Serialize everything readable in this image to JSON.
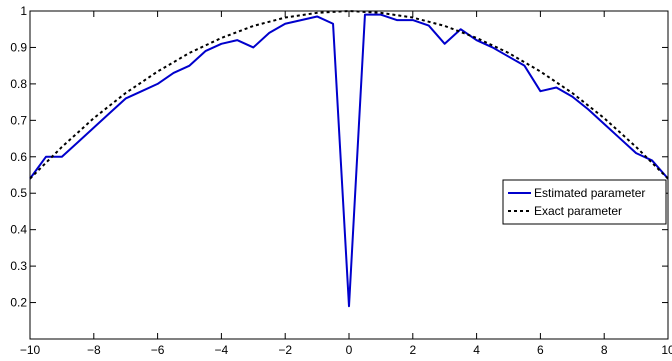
{
  "chart_data": {
    "type": "line",
    "title": "",
    "xlabel": "",
    "ylabel": "",
    "xlim": [
      -10,
      10
    ],
    "ylim": [
      0.1,
      1.0
    ],
    "x_ticks": [
      -10,
      -8,
      -6,
      -4,
      -2,
      0,
      2,
      4,
      6,
      8,
      10
    ],
    "y_ticks": [
      0.2,
      0.3,
      0.4,
      0.5,
      0.6,
      0.7,
      0.8,
      0.9,
      1
    ],
    "grid": false,
    "legend_position": "center-right",
    "series": [
      {
        "name": "Estimated parameter",
        "color": "#0000cc",
        "style": "solid",
        "points": [
          [
            -10,
            0.54
          ],
          [
            -9.5,
            0.6
          ],
          [
            -9,
            0.6
          ],
          [
            -8.5,
            0.64
          ],
          [
            -8,
            0.68
          ],
          [
            -7.5,
            0.72
          ],
          [
            -7,
            0.76
          ],
          [
            -6.5,
            0.78
          ],
          [
            -6,
            0.8
          ],
          [
            -5.5,
            0.83
          ],
          [
            -5,
            0.85
          ],
          [
            -4.5,
            0.89
          ],
          [
            -4,
            0.91
          ],
          [
            -3.5,
            0.92
          ],
          [
            -3,
            0.9
          ],
          [
            -2.5,
            0.94
          ],
          [
            -2,
            0.965
          ],
          [
            -1.5,
            0.975
          ],
          [
            -1,
            0.985
          ],
          [
            -0.5,
            0.965
          ],
          [
            0,
            0.19
          ],
          [
            0.5,
            0.99
          ],
          [
            1,
            0.99
          ],
          [
            1.5,
            0.975
          ],
          [
            2,
            0.975
          ],
          [
            2.5,
            0.96
          ],
          [
            3,
            0.91
          ],
          [
            3.5,
            0.95
          ],
          [
            4,
            0.92
          ],
          [
            4.5,
            0.9
          ],
          [
            5,
            0.875
          ],
          [
            5.5,
            0.85
          ],
          [
            6,
            0.78
          ],
          [
            6.5,
            0.79
          ],
          [
            7,
            0.765
          ],
          [
            7.5,
            0.73
          ],
          [
            8,
            0.69
          ],
          [
            8.5,
            0.65
          ],
          [
            9,
            0.61
          ],
          [
            9.5,
            0.59
          ],
          [
            10,
            0.54
          ]
        ]
      },
      {
        "name": "Exact parameter",
        "color": "#000000",
        "style": "dotted",
        "function": "1 - 0.0046*x^2",
        "points": [
          [
            -10,
            0.54
          ],
          [
            -9,
            0.627
          ],
          [
            -8,
            0.706
          ],
          [
            -7,
            0.775
          ],
          [
            -6,
            0.834
          ],
          [
            -5,
            0.885
          ],
          [
            -4,
            0.926
          ],
          [
            -3,
            0.959
          ],
          [
            -2,
            0.982
          ],
          [
            -1,
            0.995
          ],
          [
            0,
            1.0
          ],
          [
            1,
            0.995
          ],
          [
            2,
            0.982
          ],
          [
            3,
            0.959
          ],
          [
            4,
            0.926
          ],
          [
            5,
            0.885
          ],
          [
            6,
            0.834
          ],
          [
            7,
            0.775
          ],
          [
            8,
            0.706
          ],
          [
            9,
            0.627
          ],
          [
            10,
            0.54
          ]
        ]
      }
    ]
  }
}
